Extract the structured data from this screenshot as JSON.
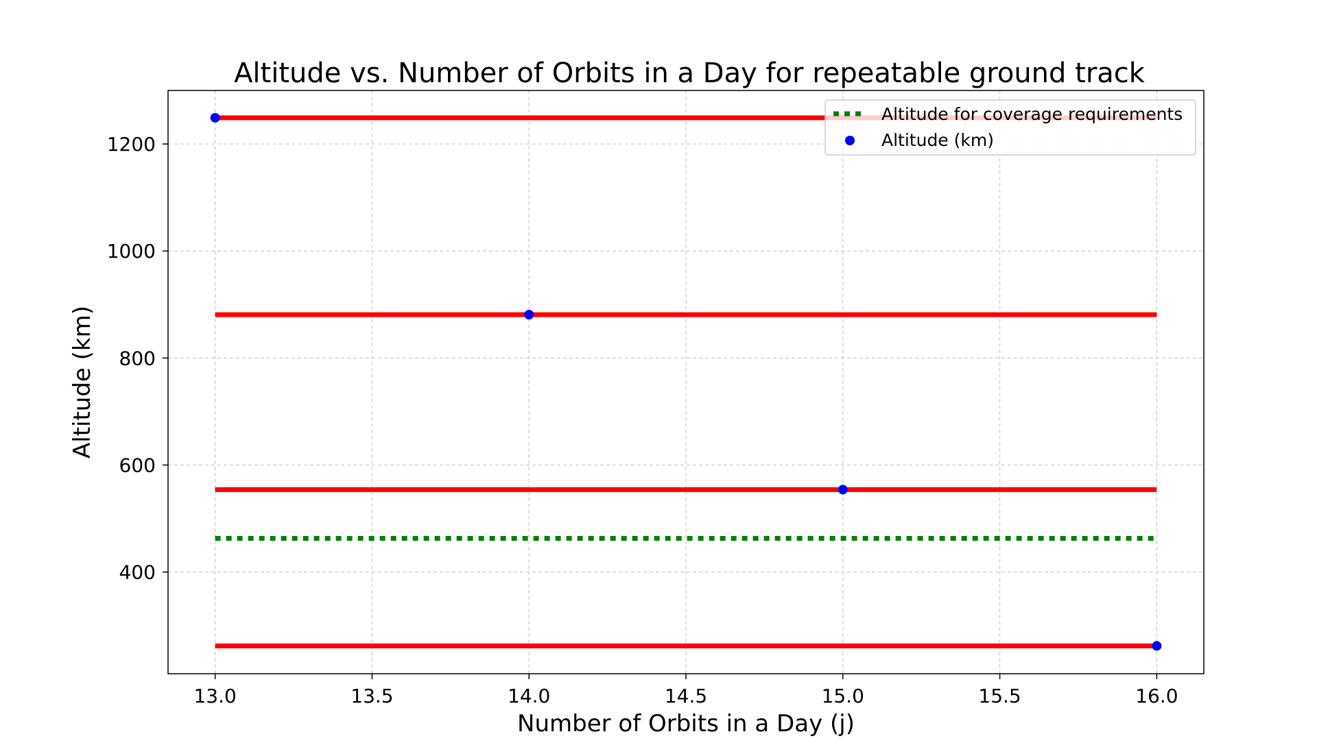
{
  "chart_data": {
    "type": "scatter",
    "title": "Altitude vs. Number of Orbits in a Day for repeatable ground track",
    "xlabel": "Number of Orbits in a Day (j)",
    "ylabel": "Altitude (km)",
    "xlim": [
      12.85,
      16.15
    ],
    "ylim": [
      210,
      1300
    ],
    "x_ticks": [
      13.0,
      13.5,
      14.0,
      14.5,
      15.0,
      15.5,
      16.0
    ],
    "x_tick_labels": [
      "13.0",
      "13.5",
      "14.0",
      "14.5",
      "15.0",
      "15.5",
      "16.0"
    ],
    "y_ticks": [
      400,
      600,
      800,
      1000,
      1200
    ],
    "y_tick_labels": [
      "400",
      "600",
      "800",
      "1000",
      "1200"
    ],
    "grid": true,
    "legend_position": "top-right",
    "series": [
      {
        "name": "Altitude (km)",
        "kind": "scatter",
        "color": "#0000ff",
        "points": [
          {
            "x": 13.0,
            "y": 1249
          },
          {
            "x": 14.0,
            "y": 881
          },
          {
            "x": 15.0,
            "y": 554
          },
          {
            "x": 16.0,
            "y": 262
          }
        ]
      },
      {
        "name": "Altitude for coverage requirements",
        "kind": "hline-dotted",
        "color": "#008000",
        "y": 463,
        "x_range": [
          13.0,
          16.0
        ]
      }
    ],
    "reference_lines": {
      "color": "#ff0000",
      "x_range": [
        13.0,
        16.0
      ],
      "y_values": [
        1249,
        881,
        554,
        262
      ]
    }
  }
}
